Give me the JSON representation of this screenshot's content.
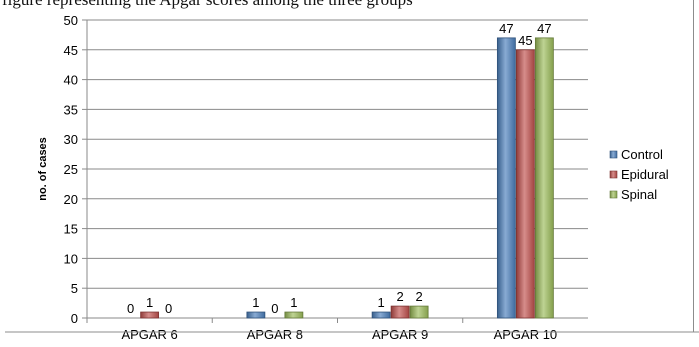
{
  "page": {
    "caption": "figure representing the Apgar scores among the three groups"
  },
  "chart_data": {
    "type": "bar",
    "title": "",
    "xlabel": "",
    "ylabel": "no. of cases",
    "ylim": [
      0,
      50
    ],
    "yticks": [
      0,
      5,
      10,
      15,
      20,
      25,
      30,
      35,
      40,
      45,
      50
    ],
    "grid": true,
    "legend_position": "right",
    "categories": [
      "APGAR 6",
      "APGAR 8",
      "APGAR 9",
      "APGAR 10"
    ],
    "series": [
      {
        "name": "Control",
        "color": "#4a7ebb",
        "values": [
          0,
          1,
          1,
          47
        ]
      },
      {
        "name": "Epidural",
        "color": "#c0504d",
        "values": [
          1,
          0,
          2,
          45
        ]
      },
      {
        "name": "Spinal",
        "color": "#9bbb59",
        "values": [
          0,
          1,
          2,
          47
        ]
      }
    ]
  }
}
